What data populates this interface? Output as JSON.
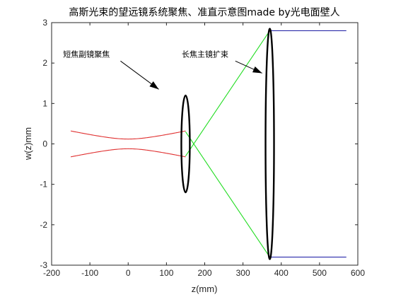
{
  "chart_data": {
    "type": "line",
    "title": "高斯光束的望远镜系统聚焦、准直示意图made by光电面壁人",
    "xlabel": "z(mm)",
    "ylabel": "w(z)mm",
    "xlim": [
      -200,
      600
    ],
    "ylim": [
      -3,
      3
    ],
    "xticks": [
      -200,
      -100,
      0,
      100,
      200,
      300,
      400,
      500,
      600
    ],
    "yticks": [
      -3,
      -2,
      -1,
      0,
      1,
      2,
      3
    ],
    "grid": false,
    "series": [
      {
        "color": "#e03030",
        "description_role": "beam-envelope-upper",
        "x": [
          -150,
          -100,
          -50,
          0,
          50,
          100,
          150
        ],
        "y": [
          0.32,
          0.24,
          0.16,
          0.12,
          0.16,
          0.24,
          0.32
        ]
      },
      {
        "color": "#e03030",
        "description_role": "beam-envelope-lower",
        "x": [
          -150,
          -100,
          -50,
          0,
          50,
          100,
          150
        ],
        "y": [
          -0.32,
          -0.24,
          -0.16,
          -0.12,
          -0.16,
          -0.24,
          -0.32
        ]
      },
      {
        "color": "#22dd22",
        "description_role": "expanded-ray-upper",
        "x": [
          150,
          370
        ],
        "y": [
          -0.3,
          2.8
        ]
      },
      {
        "color": "#22dd22",
        "description_role": "expanded-ray-lower",
        "x": [
          150,
          370
        ],
        "y": [
          0.3,
          -2.8
        ]
      },
      {
        "color": "#2a2aaa",
        "description_role": "collimated-upper",
        "x": [
          370,
          570
        ],
        "y": [
          2.8,
          2.8
        ]
      },
      {
        "color": "#2a2aaa",
        "description_role": "collimated-lower",
        "x": [
          370,
          570
        ],
        "y": [
          -2.8,
          -2.8
        ]
      }
    ],
    "lenses": [
      {
        "z": 150,
        "half_width": 6,
        "half_height": 1.2
      },
      {
        "z": 370,
        "half_width": 6,
        "half_height": 2.85
      }
    ],
    "annotations": [
      {
        "text": "短焦副镜聚焦",
        "text_x": -170,
        "text_y": 2.15,
        "arrow_from": [
          -20,
          2.05
        ],
        "arrow_to": [
          80,
          1.35
        ]
      },
      {
        "text": "长焦主镜扩束",
        "text_x": 140,
        "text_y": 2.15,
        "arrow_from": [
          280,
          2.05
        ],
        "arrow_to": [
          350,
          1.75
        ]
      }
    ]
  }
}
